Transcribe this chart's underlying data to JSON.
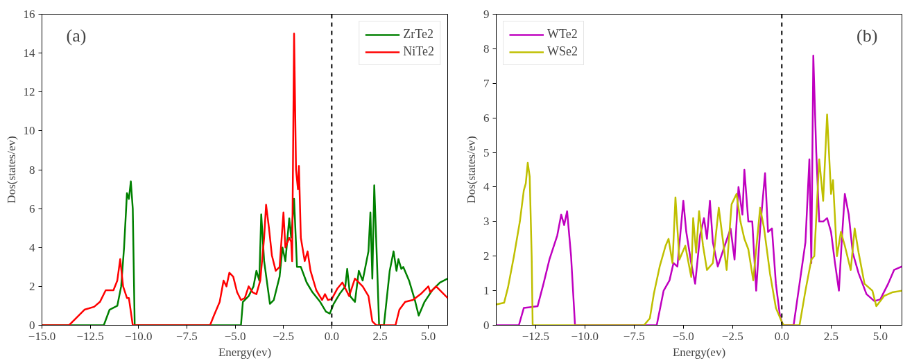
{
  "chart_data": [
    {
      "type": "line",
      "xlabel": "Energy(ev)",
      "ylabel": "Dos(states/ev)",
      "annotations": [
        "(a)"
      ],
      "xlim": [
        -15,
        6
      ],
      "ylim": [
        0,
        16
      ],
      "xticks": [
        {
          "value": -15,
          "label": "−15.0"
        },
        {
          "value": -12.5,
          "label": "−12.5"
        },
        {
          "value": -10,
          "label": "−10.0"
        },
        {
          "value": -7.5,
          "label": "−7.5"
        },
        {
          "value": -5,
          "label": "−5.0"
        },
        {
          "value": -2.5,
          "label": "−2.5"
        },
        {
          "value": 0,
          "label": "0.0"
        },
        {
          "value": 2.5,
          "label": "2.5"
        },
        {
          "value": 5,
          "label": "5.0"
        }
      ],
      "yticks": [
        0,
        2,
        4,
        6,
        8,
        10,
        12,
        14,
        16
      ],
      "grid": false,
      "legend": "top right",
      "line_style": "solid",
      "marker": "none",
      "ref_lines": [
        {
          "axis": "x",
          "value": 0,
          "color": "#000000",
          "line_style": "dashed"
        }
      ],
      "series": [
        {
          "name": "ZrTe2",
          "color": "#008000",
          "x": [
            -15,
            -11.8,
            -11.5,
            -11.1,
            -10.9,
            -10.75,
            -10.6,
            -10.5,
            -10.4,
            -10.3,
            -10.2,
            -4.7,
            -4.6,
            -4.3,
            -4.05,
            -3.9,
            -3.75,
            -3.65,
            -3.5,
            -3.2,
            -3.0,
            -2.7,
            -2.55,
            -2.4,
            -2.2,
            -2.1,
            -1.95,
            -1.8,
            -1.6,
            -1.3,
            -1.0,
            -0.6,
            -0.3,
            -0.1,
            0.1,
            0.4,
            0.7,
            0.8,
            0.95,
            1.2,
            1.4,
            1.6,
            1.9,
            2.0,
            2.1,
            2.2,
            2.35,
            2.45,
            2.7,
            3.0,
            3.2,
            3.35,
            3.45,
            3.6,
            3.7,
            4.0,
            4.3,
            4.5,
            4.8,
            5.2,
            5.6,
            6.0
          ],
          "values": [
            0,
            0,
            0.8,
            1.0,
            2.0,
            4.0,
            6.8,
            6.5,
            7.4,
            6.0,
            0,
            0,
            1.2,
            1.5,
            2.0,
            2.8,
            2.3,
            5.7,
            3.3,
            1.1,
            1.3,
            2.5,
            4.0,
            3.3,
            5.5,
            4.5,
            6.5,
            3.0,
            3.0,
            2.2,
            1.7,
            1.2,
            0.7,
            0.6,
            1.1,
            1.6,
            2.0,
            2.9,
            1.5,
            1.2,
            2.8,
            2.3,
            3.8,
            5.8,
            2.4,
            7.2,
            3.0,
            0,
            0,
            2.8,
            3.8,
            2.8,
            3.4,
            2.9,
            3.0,
            2.3,
            1.3,
            0.5,
            1.2,
            1.8,
            2.2,
            2.4
          ]
        },
        {
          "name": "NiTe2",
          "color": "#ff0000",
          "x": [
            -15,
            -13.6,
            -13.3,
            -12.8,
            -12.3,
            -12.0,
            -11.7,
            -11.3,
            -11.1,
            -10.95,
            -10.8,
            -10.6,
            -10.5,
            -10.3,
            -6.3,
            -6.1,
            -5.8,
            -5.6,
            -5.45,
            -5.3,
            -5.1,
            -4.9,
            -4.7,
            -4.5,
            -4.3,
            -4.1,
            -3.9,
            -3.7,
            -3.5,
            -3.4,
            -3.25,
            -3.1,
            -2.9,
            -2.7,
            -2.5,
            -2.4,
            -2.2,
            -2.1,
            -2.05,
            -1.95,
            -1.85,
            -1.75,
            -1.7,
            -1.6,
            -1.4,
            -1.25,
            -1.1,
            -0.8,
            -0.5,
            -0.35,
            -0.2,
            0.0,
            0.3,
            0.55,
            0.9,
            1.2,
            1.6,
            1.9,
            2.1,
            2.3,
            3.3,
            3.5,
            3.8,
            4.2,
            4.6,
            5.0,
            5.1,
            5.4,
            6.0
          ],
          "values": [
            0,
            0,
            0.3,
            0.8,
            0.95,
            1.2,
            1.8,
            1.8,
            2.3,
            3.4,
            2.0,
            1.4,
            1.4,
            0,
            0,
            0.5,
            1.2,
            2.3,
            2.0,
            2.7,
            2.5,
            1.7,
            1.3,
            1.4,
            2.0,
            1.7,
            1.6,
            2.3,
            4.5,
            6.2,
            5.0,
            3.6,
            2.8,
            3.0,
            5.8,
            4.0,
            4.5,
            4.3,
            3.3,
            15.0,
            8.0,
            7.0,
            8.2,
            4.5,
            3.3,
            3.8,
            2.8,
            1.8,
            1.3,
            1.6,
            1.3,
            1.35,
            1.9,
            2.2,
            1.5,
            2.4,
            2.0,
            1.5,
            0.2,
            0,
            0,
            0.8,
            1.2,
            1.3,
            1.6,
            2.0,
            1.7,
            2.0,
            1.4
          ]
        }
      ]
    },
    {
      "type": "line",
      "xlabel": "Energy(ev)",
      "ylabel": "Dos(states/ev)",
      "annotations": [
        "(b)"
      ],
      "xlim": [
        -14.5,
        6.1
      ],
      "ylim": [
        0,
        9
      ],
      "xticks": [
        {
          "value": -12.5,
          "label": "−12.5"
        },
        {
          "value": -10,
          "label": "−10.0"
        },
        {
          "value": -7.5,
          "label": "−7.5"
        },
        {
          "value": -5,
          "label": "−5.0"
        },
        {
          "value": -2.5,
          "label": "−2.5"
        },
        {
          "value": 0,
          "label": "0.0"
        },
        {
          "value": 2.5,
          "label": "2.5"
        },
        {
          "value": 5,
          "label": "5.0"
        }
      ],
      "yticks": [
        0,
        1,
        2,
        3,
        4,
        5,
        6,
        7,
        8,
        9
      ],
      "grid": false,
      "legend": "top left",
      "line_style": "solid",
      "marker": "none",
      "ref_lines": [
        {
          "axis": "x",
          "value": 0,
          "color": "#000000",
          "line_style": "dashed"
        }
      ],
      "series": [
        {
          "name": "WTe2",
          "color": "#bf00bf",
          "x": [
            -14.5,
            -13.35,
            -13.1,
            -12.4,
            -12.1,
            -11.8,
            -11.4,
            -11.2,
            -11.05,
            -10.9,
            -10.7,
            -10.5,
            -6.35,
            -6.0,
            -5.7,
            -5.5,
            -5.3,
            -5.0,
            -4.85,
            -4.6,
            -4.4,
            -4.15,
            -3.95,
            -3.8,
            -3.65,
            -3.5,
            -3.25,
            -2.9,
            -2.6,
            -2.4,
            -2.2,
            -2.0,
            -1.9,
            -1.7,
            -1.5,
            -1.3,
            -1.1,
            -0.85,
            -0.7,
            -0.5,
            -0.3,
            -0.1,
            0.05,
            0.6,
            0.9,
            1.2,
            1.3,
            1.4,
            1.5,
            1.6,
            1.75,
            1.9,
            2.1,
            2.3,
            2.5,
            2.7,
            2.9,
            3.05,
            3.2,
            3.4,
            3.6,
            3.9,
            4.3,
            4.7,
            5.0,
            5.4,
            5.7,
            6.1
          ],
          "values": [
            0,
            0,
            0.5,
            0.55,
            1.2,
            1.9,
            2.6,
            3.2,
            2.9,
            3.3,
            2.0,
            0,
            0,
            1.0,
            1.3,
            1.8,
            1.7,
            3.6,
            2.7,
            1.8,
            1.2,
            2.6,
            3.1,
            2.5,
            3.6,
            2.4,
            1.7,
            2.3,
            2.8,
            1.9,
            4.0,
            3.2,
            4.5,
            3.0,
            3.0,
            1.0,
            2.8,
            4.4,
            2.7,
            2.8,
            1.2,
            0.3,
            0,
            0,
            1.2,
            2.4,
            3.6,
            4.8,
            1.8,
            7.8,
            5.0,
            3.0,
            3.0,
            3.1,
            2.7,
            1.8,
            1.0,
            2.5,
            3.8,
            3.2,
            2.1,
            1.5,
            0.9,
            0.7,
            0.75,
            1.2,
            1.6,
            1.7
          ]
        },
        {
          "name": "WSe2",
          "color": "#bfbf00",
          "x": [
            -14.5,
            -14.1,
            -13.9,
            -13.6,
            -13.3,
            -13.1,
            -13.0,
            -12.9,
            -12.8,
            -12.7,
            -12.65,
            -7.0,
            -6.7,
            -6.5,
            -6.2,
            -5.9,
            -5.75,
            -5.55,
            -5.4,
            -5.2,
            -4.9,
            -4.6,
            -4.5,
            -4.35,
            -4.2,
            -4.0,
            -3.8,
            -3.5,
            -3.2,
            -3.0,
            -2.8,
            -2.55,
            -2.3,
            -2.1,
            -1.9,
            -1.7,
            -1.45,
            -1.1,
            -0.9,
            -0.6,
            -0.3,
            0.0,
            0.1,
            0.9,
            1.2,
            1.5,
            1.65,
            1.9,
            2.1,
            2.3,
            2.5,
            2.6,
            2.8,
            3.0,
            3.2,
            3.5,
            3.7,
            3.9,
            4.2,
            4.6,
            4.8,
            5.2,
            5.6,
            6.1
          ],
          "values": [
            0.6,
            0.65,
            1.1,
            2.0,
            3.0,
            3.9,
            4.1,
            4.7,
            4.3,
            2.0,
            0,
            0,
            0.2,
            0.9,
            1.7,
            2.3,
            2.5,
            1.8,
            3.7,
            1.9,
            2.3,
            1.4,
            3.1,
            2.1,
            3.3,
            2.3,
            1.6,
            1.8,
            3.4,
            2.5,
            1.6,
            3.5,
            3.8,
            3.0,
            2.5,
            2.2,
            1.3,
            3.4,
            2.8,
            1.5,
            0.5,
            0.1,
            0,
            0,
            1.0,
            1.9,
            2.0,
            4.8,
            3.6,
            6.1,
            3.8,
            4.2,
            2.0,
            2.7,
            2.3,
            1.6,
            2.8,
            2.1,
            1.2,
            1.0,
            0.55,
            0.85,
            0.95,
            1.0
          ]
        }
      ]
    }
  ]
}
